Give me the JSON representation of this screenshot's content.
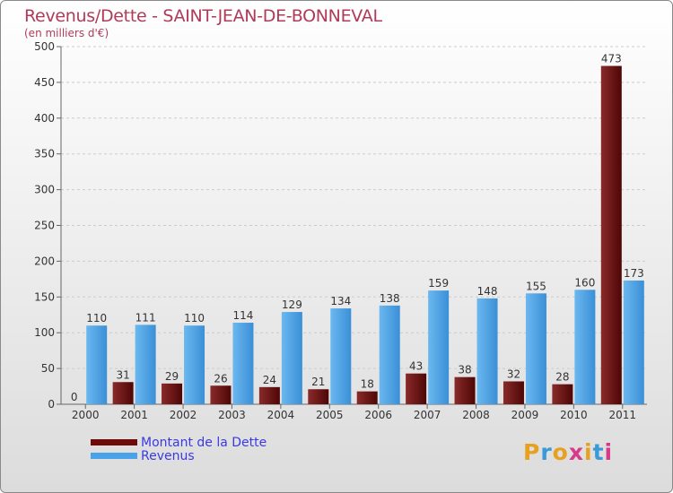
{
  "page": {
    "title": "Revenus/Dette - SAINT-JEAN-DE-BONNEVAL",
    "subtitle": "(en milliers d'€)",
    "logo": "Proxiti"
  },
  "legend": [
    {
      "label": "Montant de la Dette",
      "color": "#6e0a0a"
    },
    {
      "label": "Revenus",
      "color": "#4aa3e8"
    }
  ],
  "colors": {
    "title": "#b03a5a",
    "legend_text": "#3a3ae0",
    "debt_bar": "#6e0a0a",
    "revenue_bar": "#4aa3e8",
    "gridline": "#cccccc"
  },
  "chart_data": {
    "type": "bar",
    "title": "Revenus/Dette - SAINT-JEAN-DE-BONNEVAL",
    "subtitle": "(en milliers d'€)",
    "xlabel": "",
    "ylabel": "",
    "categories": [
      "2000",
      "2001",
      "2002",
      "2003",
      "2004",
      "2005",
      "2006",
      "2007",
      "2008",
      "2009",
      "2010",
      "2011"
    ],
    "series": [
      {
        "name": "Montant de la Dette",
        "values": [
          0,
          31,
          29,
          26,
          24,
          21,
          18,
          43,
          38,
          32,
          28,
          473
        ]
      },
      {
        "name": "Revenus",
        "values": [
          110,
          111,
          110,
          114,
          129,
          134,
          138,
          159,
          148,
          155,
          160,
          173
        ]
      }
    ],
    "ylim": [
      0,
      500
    ],
    "yticks": [
      0,
      50,
      100,
      150,
      200,
      250,
      300,
      350,
      400,
      450,
      500
    ],
    "grid": "horizontal dashed",
    "legend_position": "bottom-left"
  }
}
